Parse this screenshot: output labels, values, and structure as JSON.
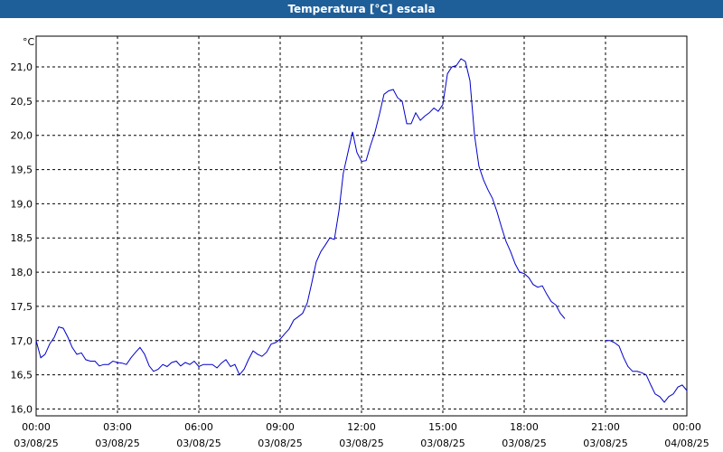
{
  "window": {
    "title": "Temperatura [°C] escala"
  },
  "chart_data": {
    "type": "line",
    "title": "Temperatura [°C] escala",
    "ylabel": "°C",
    "xlabel": "",
    "ylim": [
      15.9,
      21.45
    ],
    "xlim": [
      0,
      24
    ],
    "grid": true,
    "y_ticks": [
      "16,0",
      "16,5",
      "17,0",
      "17,5",
      "18,0",
      "18,5",
      "19,0",
      "19,5",
      "20,0",
      "20,5",
      "21,0"
    ],
    "y_tick_values": [
      16.0,
      16.5,
      17.0,
      17.5,
      18.0,
      18.5,
      19.0,
      19.5,
      20.0,
      20.5,
      21.0
    ],
    "x_ticks": [
      {
        "time": "00:00",
        "date": "03/08/25",
        "hour": 0
      },
      {
        "time": "03:00",
        "date": "03/08/25",
        "hour": 3
      },
      {
        "time": "06:00",
        "date": "03/08/25",
        "hour": 6
      },
      {
        "time": "09:00",
        "date": "03/08/25",
        "hour": 9
      },
      {
        "time": "12:00",
        "date": "03/08/25",
        "hour": 12
      },
      {
        "time": "15:00",
        "date": "03/08/25",
        "hour": 15
      },
      {
        "time": "18:00",
        "date": "03/08/25",
        "hour": 18
      },
      {
        "time": "21:00",
        "date": "03/08/25",
        "hour": 21
      },
      {
        "time": "00:00",
        "date": "04/08/25",
        "hour": 24
      }
    ],
    "line_color": "#0000cc",
    "series": [
      {
        "segments": [
          [
            [
              0.0,
              17.0
            ],
            [
              0.17,
              16.75
            ],
            [
              0.33,
              16.8
            ],
            [
              0.5,
              16.95
            ],
            [
              0.67,
              17.05
            ],
            [
              0.83,
              17.2
            ],
            [
              1.0,
              17.18
            ],
            [
              1.17,
              17.05
            ],
            [
              1.33,
              16.9
            ],
            [
              1.5,
              16.8
            ],
            [
              1.67,
              16.82
            ],
            [
              1.83,
              16.72
            ],
            [
              2.0,
              16.7
            ],
            [
              2.17,
              16.7
            ],
            [
              2.33,
              16.63
            ],
            [
              2.5,
              16.65
            ],
            [
              2.67,
              16.65
            ],
            [
              2.83,
              16.7
            ],
            [
              3.0,
              16.68
            ],
            [
              3.17,
              16.67
            ],
            [
              3.33,
              16.65
            ],
            [
              3.5,
              16.75
            ],
            [
              3.67,
              16.83
            ],
            [
              3.83,
              16.9
            ],
            [
              4.0,
              16.8
            ],
            [
              4.17,
              16.63
            ],
            [
              4.33,
              16.55
            ],
            [
              4.5,
              16.58
            ],
            [
              4.67,
              16.65
            ],
            [
              4.83,
              16.62
            ],
            [
              5.0,
              16.68
            ],
            [
              5.17,
              16.7
            ],
            [
              5.33,
              16.63
            ],
            [
              5.5,
              16.68
            ],
            [
              5.67,
              16.65
            ],
            [
              5.83,
              16.7
            ],
            [
              6.0,
              16.62
            ],
            [
              6.17,
              16.65
            ],
            [
              6.33,
              16.65
            ],
            [
              6.5,
              16.65
            ],
            [
              6.67,
              16.6
            ],
            [
              6.83,
              16.67
            ],
            [
              7.0,
              16.72
            ],
            [
              7.17,
              16.62
            ],
            [
              7.33,
              16.65
            ],
            [
              7.5,
              16.5
            ],
            [
              7.67,
              16.58
            ],
            [
              7.83,
              16.72
            ],
            [
              8.0,
              16.85
            ],
            [
              8.17,
              16.8
            ],
            [
              8.33,
              16.77
            ],
            [
              8.5,
              16.83
            ],
            [
              8.67,
              16.95
            ],
            [
              8.83,
              16.97
            ],
            [
              9.0,
              17.02
            ],
            [
              9.17,
              17.1
            ],
            [
              9.33,
              17.17
            ],
            [
              9.5,
              17.3
            ],
            [
              9.67,
              17.35
            ],
            [
              9.83,
              17.4
            ],
            [
              10.0,
              17.55
            ],
            [
              10.17,
              17.85
            ],
            [
              10.33,
              18.15
            ],
            [
              10.5,
              18.3
            ],
            [
              10.67,
              18.4
            ],
            [
              10.83,
              18.5
            ],
            [
              11.0,
              18.48
            ],
            [
              11.17,
              18.9
            ],
            [
              11.33,
              19.45
            ],
            [
              11.5,
              19.75
            ],
            [
              11.67,
              20.05
            ],
            [
              11.83,
              19.75
            ],
            [
              12.0,
              19.62
            ],
            [
              12.17,
              19.63
            ],
            [
              12.33,
              19.85
            ],
            [
              12.5,
              20.05
            ],
            [
              12.67,
              20.32
            ],
            [
              12.83,
              20.6
            ],
            [
              13.0,
              20.65
            ],
            [
              13.17,
              20.67
            ],
            [
              13.33,
              20.55
            ],
            [
              13.5,
              20.5
            ],
            [
              13.67,
              20.17
            ],
            [
              13.83,
              20.17
            ],
            [
              14.0,
              20.33
            ],
            [
              14.17,
              20.22
            ],
            [
              14.33,
              20.28
            ],
            [
              14.5,
              20.33
            ],
            [
              14.67,
              20.4
            ],
            [
              14.83,
              20.35
            ],
            [
              15.0,
              20.45
            ],
            [
              15.17,
              20.9
            ],
            [
              15.33,
              21.0
            ],
            [
              15.5,
              21.02
            ],
            [
              15.67,
              21.12
            ],
            [
              15.83,
              21.08
            ],
            [
              16.0,
              20.8
            ],
            [
              16.17,
              20.0
            ],
            [
              16.33,
              19.55
            ],
            [
              16.5,
              19.35
            ],
            [
              16.67,
              19.2
            ],
            [
              16.83,
              19.08
            ],
            [
              17.0,
              18.88
            ],
            [
              17.17,
              18.65
            ],
            [
              17.33,
              18.45
            ],
            [
              17.5,
              18.3
            ],
            [
              17.67,
              18.12
            ],
            [
              17.83,
              18.0
            ],
            [
              18.0,
              17.98
            ],
            [
              18.17,
              17.92
            ],
            [
              18.33,
              17.82
            ],
            [
              18.5,
              17.78
            ],
            [
              18.67,
              17.8
            ],
            [
              18.83,
              17.68
            ],
            [
              19.0,
              17.57
            ],
            [
              19.17,
              17.52
            ],
            [
              19.33,
              17.4
            ],
            [
              19.5,
              17.32
            ]
          ],
          [
            [
              21.0,
              17.0
            ],
            [
              21.17,
              17.0
            ],
            [
              21.33,
              16.97
            ],
            [
              21.5,
              16.92
            ],
            [
              21.67,
              16.75
            ],
            [
              21.83,
              16.62
            ],
            [
              22.0,
              16.55
            ],
            [
              22.17,
              16.55
            ],
            [
              22.33,
              16.53
            ],
            [
              22.5,
              16.5
            ],
            [
              22.67,
              16.35
            ],
            [
              22.83,
              16.22
            ],
            [
              23.0,
              16.18
            ],
            [
              23.17,
              16.1
            ],
            [
              23.33,
              16.18
            ],
            [
              23.5,
              16.22
            ],
            [
              23.67,
              16.32
            ],
            [
              23.83,
              16.35
            ],
            [
              24.0,
              16.27
            ]
          ]
        ]
      }
    ]
  }
}
